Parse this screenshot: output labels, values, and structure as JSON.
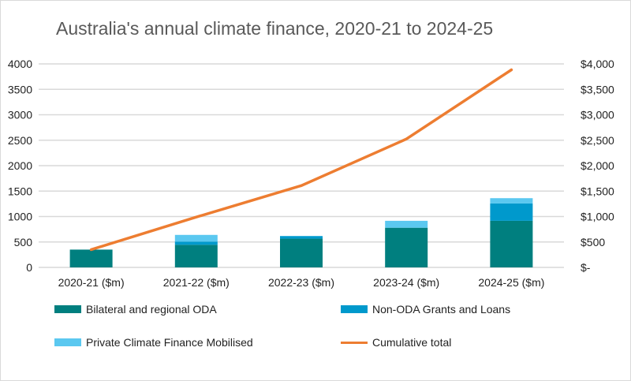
{
  "chart_data": {
    "type": "bar",
    "title": "Australia's annual climate finance, 2020-21 to 2024-25",
    "categories": [
      "2020-21 ($m)",
      "2021-22 ($m)",
      "2022-23 ($m)",
      "2023-24 ($m)",
      "2024-25 ($m)"
    ],
    "series": [
      {
        "name": "Bilateral and regional ODA",
        "kind": "stacked-bar",
        "color": "#007f7f",
        "values": [
          350,
          445,
          565,
          780,
          916
        ]
      },
      {
        "name": "Non-ODA Grants and Loans",
        "kind": "stacked-bar",
        "color": "#0099cc",
        "values": [
          0,
          63,
          50,
          0,
          341
        ]
      },
      {
        "name": "Private Climate Finance Mobilised",
        "kind": "stacked-bar",
        "color": "#5bc8f0",
        "values": [
          0,
          131,
          5,
          136,
          104
        ]
      },
      {
        "name": "Cumulative total",
        "kind": "line",
        "color": "#ed7d31",
        "values": [
          350,
          989,
          1607,
          2523,
          3884
        ]
      }
    ],
    "ylim": [
      0,
      4000
    ],
    "yticks": [
      "0",
      "500",
      "1000",
      "1500",
      "2000",
      "2500",
      "3000",
      "3500",
      "4000"
    ],
    "y2ticks": [
      "$-",
      "$500",
      "$1,000",
      "$1,500",
      "$2,000",
      "$2,500",
      "$3,000",
      "$3,500",
      "$4,000"
    ],
    "grid": true,
    "legend": "bottom"
  }
}
